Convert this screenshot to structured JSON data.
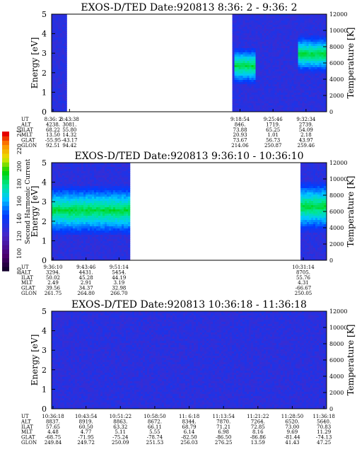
{
  "colorbar": {
    "label": "Second Harmonic Current",
    "ticks": [
      "80",
      "100",
      "120",
      "140",
      "160",
      "180",
      "200",
      "220",
      "240"
    ],
    "vmin": 80,
    "vmax": 240
  },
  "aux_labels": [
    "UT",
    "ALT",
    "ILAT",
    "MLT",
    "GLAT",
    "GLON"
  ],
  "chart_data": [
    {
      "type": "heatmap",
      "title": "EXOS-D/TED   Date:920813  8:36: 2 - 9:36: 2",
      "ylabel": "Energy [eV]",
      "y2label": "Temperature [K]",
      "ylim": [
        0,
        5
      ],
      "y2lim": [
        0,
        12000
      ],
      "yticks": [
        "0",
        "1",
        "2",
        "3",
        "4",
        "5"
      ],
      "y2ticks": [
        "0",
        "2000",
        "4000",
        "6000",
        "8000",
        "10000",
        "12000"
      ],
      "data_segments": [
        [
          0.0,
          0.055
        ],
        [
          0.657,
          1.0
        ]
      ],
      "ion_band": {
        "segments": [
          [
            0.657,
            0.74,
            2.4
          ],
          [
            0.89,
            1.0,
            3.0
          ]
        ],
        "width": 0.6
      },
      "aux_columns": [
        {
          "pos": 0.0,
          "values": [
            "8:36: 2",
            "4238.",
            "68.22",
            "13.50",
            "-55.95",
            "92.51"
          ]
        },
        {
          "pos": 0.06,
          "values": [
            "8:43:38",
            "3081.",
            "55.80",
            "14.32",
            "-43.17",
            "94.42"
          ]
        },
        {
          "pos": 0.68,
          "values": [
            "9:18:54",
            "846.",
            "73.88",
            "20.93",
            "73.67",
            "214.06"
          ]
        },
        {
          "pos": 0.8,
          "values": [
            "9:25:46",
            "1719.",
            "65.25",
            "1.01",
            "56.73",
            "250.87"
          ]
        },
        {
          "pos": 0.92,
          "values": [
            "9:32:34",
            "2739.",
            "54.09",
            "2.18",
            "43.97",
            "259.46"
          ]
        }
      ]
    },
    {
      "type": "heatmap",
      "title": "EXOS-D/TED   Date:920813  9:36:10 - 10:36:10",
      "ylabel": "Energy [eV]",
      "y2label": "Temperature [K]",
      "ylim": [
        0,
        5
      ],
      "y2lim": [
        0,
        12000
      ],
      "yticks": [
        "0",
        "1",
        "2",
        "3",
        "4",
        "5"
      ],
      "y2ticks": [
        "0",
        "2000",
        "4000",
        "6000",
        "8000",
        "10000",
        "12000"
      ],
      "data_segments": [
        [
          0.0,
          0.285
        ],
        [
          0.905,
          1.0
        ]
      ],
      "ion_band": {
        "segments": [
          [
            0.0,
            0.285,
            2.6
          ],
          [
            0.905,
            1.0,
            2.8
          ]
        ],
        "width": 0.8
      },
      "aux_columns": [
        {
          "pos": 0.0,
          "values": [
            "9:36:10",
            "3294.",
            "50.02",
            "2.49",
            "39.56",
            "261.75"
          ]
        },
        {
          "pos": 0.12,
          "values": [
            "9:43:46",
            "4431.",
            "45.28",
            "2.91",
            "34.37",
            "264.80"
          ]
        },
        {
          "pos": 0.24,
          "values": [
            "9:51:14",
            "5454.",
            "44.19",
            "3.19",
            "32.98",
            "266.70"
          ]
        },
        {
          "pos": 0.91,
          "values": [
            "10:31:14",
            "8705.",
            "55.76",
            "4.31",
            "-66.67",
            "250.05"
          ]
        }
      ]
    },
    {
      "type": "heatmap",
      "title": "EXOS-D/TED   Date:920813  10:36:18 - 11:36:18",
      "ylabel": "Energy [eV]",
      "y2label": "Temperature [K]",
      "ylim": [
        0,
        5
      ],
      "y2lim": [
        0,
        12000
      ],
      "yticks": [
        "0",
        "1",
        "2",
        "3",
        "4",
        "5"
      ],
      "y2ticks": [
        "0",
        "2000",
        "4000",
        "6000",
        "8000",
        "10000",
        "12000"
      ],
      "data_segments": [
        [
          0.0,
          1.0
        ]
      ],
      "ion_band": {
        "segments": [],
        "width": 0
      },
      "aux_columns": [
        {
          "pos": 0.0,
          "values": [
            "10:36:18",
            "8837.",
            "57.65",
            "4.48",
            "-68.75",
            "249.84"
          ]
        },
        {
          "pos": 0.12,
          "values": [
            "10:43:54",
            "8919.",
            "60.50",
            "4.77",
            "-71.95",
            "249.72"
          ]
        },
        {
          "pos": 0.245,
          "values": [
            "10:51:22",
            "8863.",
            "63.32",
            "5.11",
            "-75.24",
            "250.09"
          ]
        },
        {
          "pos": 0.37,
          "values": [
            "10:58:50",
            "8672.",
            "66.11",
            "5.55",
            "-78.74",
            "251.53"
          ]
        },
        {
          "pos": 0.495,
          "values": [
            "11: 6:18",
            "8344.",
            "68.79",
            "6.14",
            "-82.50",
            "256.03"
          ]
        },
        {
          "pos": 0.62,
          "values": [
            "11:13:54",
            "7870.",
            "71.21",
            "6.98",
            "-86.50",
            "276.25"
          ]
        },
        {
          "pos": 0.745,
          "values": [
            "11:21:22",
            "7264.",
            "72.85",
            "8.16",
            "-86.86",
            "13.59"
          ]
        },
        {
          "pos": 0.87,
          "values": [
            "11:28:50",
            "6520.",
            "73.00",
            "9.69",
            "-81.44",
            "41.43"
          ]
        },
        {
          "pos": 0.985,
          "values": [
            "11:36:18",
            "5640.",
            "70.83",
            "11.29",
            "-74.13",
            "47.25"
          ]
        }
      ]
    }
  ]
}
